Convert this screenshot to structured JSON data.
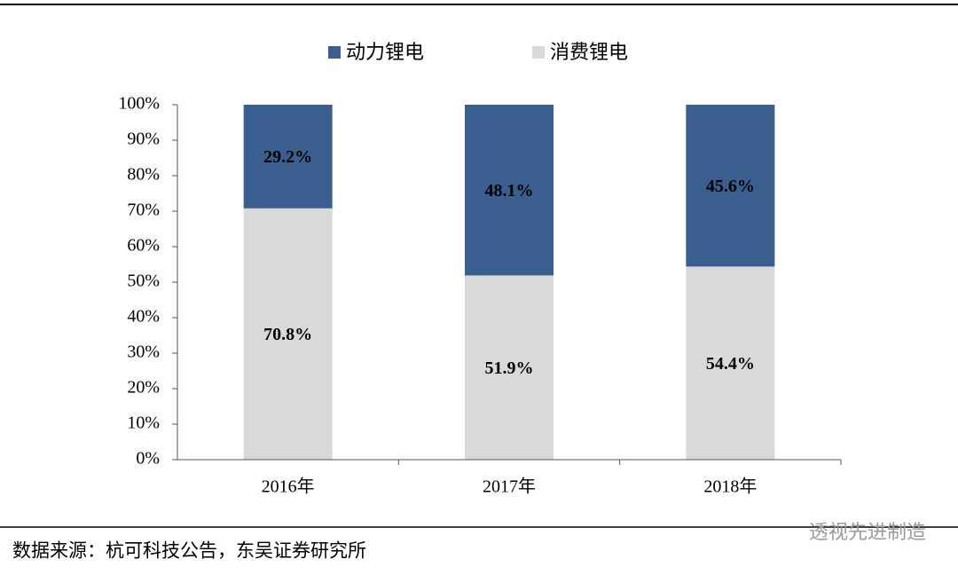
{
  "chart_data": {
    "type": "stacked_bar",
    "categories": [
      "2016年",
      "2017年",
      "2018年"
    ],
    "series": [
      {
        "name": "动力锂电",
        "color": "#3a5f8f",
        "values": [
          29.2,
          48.1,
          45.6
        ],
        "value_labels": [
          "29.2%",
          "48.1%",
          "45.6%"
        ]
      },
      {
        "name": "消费锂电",
        "color": "#d9d9d9",
        "values": [
          70.8,
          51.9,
          54.4
        ],
        "value_labels": [
          "70.8%",
          "51.9%",
          "54.4%"
        ]
      }
    ],
    "ylim": [
      0,
      100
    ],
    "yticks": [
      {
        "value": 0,
        "label": "0%"
      },
      {
        "value": 10,
        "label": "10%"
      },
      {
        "value": 20,
        "label": "20%"
      },
      {
        "value": 30,
        "label": "30%"
      },
      {
        "value": 40,
        "label": "40%"
      },
      {
        "value": 50,
        "label": "50%"
      },
      {
        "value": 60,
        "label": "60%"
      },
      {
        "value": 70,
        "label": "70%"
      },
      {
        "value": 80,
        "label": "80%"
      },
      {
        "value": 90,
        "label": "90%"
      },
      {
        "value": 100,
        "label": "100%"
      }
    ],
    "legend": "top",
    "source": "数据来源：杭可科技公告，东吴证券研究所",
    "watermark": "透视先进制造"
  }
}
